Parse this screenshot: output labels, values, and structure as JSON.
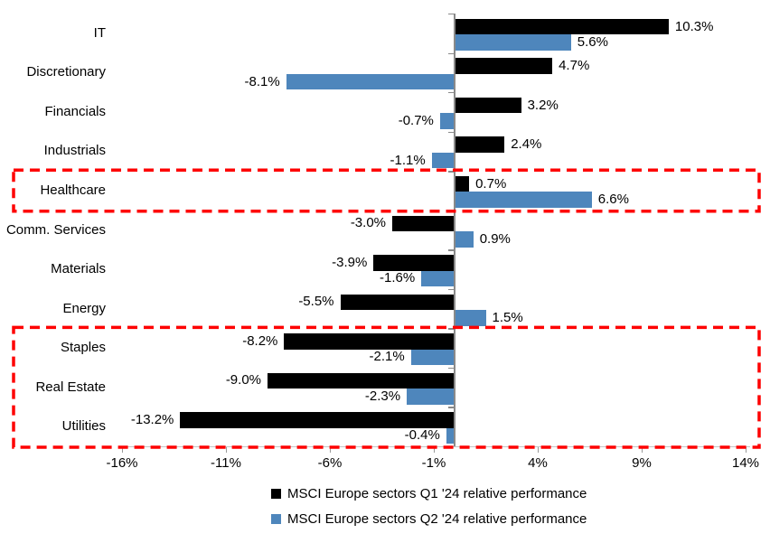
{
  "chart_data": {
    "type": "bar",
    "orientation": "horizontal",
    "title": "",
    "categories": [
      "IT",
      "Discretionary",
      "Financials",
      "Industrials",
      "Healthcare",
      "Comm. Services",
      "Materials",
      "Energy",
      "Staples",
      "Real Estate",
      "Utilities"
    ],
    "series": [
      {
        "name": "MSCI Europe sectors Q1 '24 relative performance",
        "color": "#000000",
        "values": [
          10.3,
          4.7,
          3.2,
          2.4,
          0.7,
          -3.0,
          -3.9,
          -5.5,
          -8.2,
          -9.0,
          -13.2
        ],
        "labels": [
          "10.3%",
          "4.7%",
          "3.2%",
          "2.4%",
          "0.7%",
          "-3.0%",
          "-3.9%",
          "-5.5%",
          "-8.2%",
          "-9.0%",
          "-13.2%"
        ]
      },
      {
        "name": "MSCI Europe sectors Q2 '24 relative performance",
        "color": "#4E86BC",
        "values": [
          5.6,
          -8.1,
          -0.7,
          -1.1,
          6.6,
          0.9,
          -1.6,
          1.5,
          -2.1,
          -2.3,
          -0.4
        ],
        "labels": [
          "5.6%",
          "-8.1%",
          "-0.7%",
          "-1.1%",
          "6.6%",
          "0.9%",
          "-1.6%",
          "1.5%",
          "-2.1%",
          "-2.3%",
          "-0.4%"
        ]
      }
    ],
    "x_axis": {
      "unit": "%",
      "ticks": [
        "-16%",
        "-11%",
        "-6%",
        "-1%",
        "4%",
        "9%",
        "14%"
      ],
      "tick_values": [
        -16,
        -11,
        -6,
        -1,
        4,
        9,
        14
      ],
      "min": -17.5,
      "max": 15
    },
    "data_labels": "outside_end",
    "gridlines": false,
    "legend_position": "bottom",
    "highlights": [
      {
        "style": "red-dashed-box",
        "sectors": [
          "Healthcare"
        ]
      },
      {
        "style": "red-dashed-box",
        "sectors": [
          "Staples",
          "Real Estate",
          "Utilities"
        ]
      }
    ],
    "colors": {
      "q1_bar": "#000000",
      "q2_bar": "#4E86BC",
      "highlight_box": "#FE0000",
      "category_axis_line": "#c3c3c3",
      "value_axis_line": "#8a8a8a",
      "text": "#000000"
    }
  }
}
